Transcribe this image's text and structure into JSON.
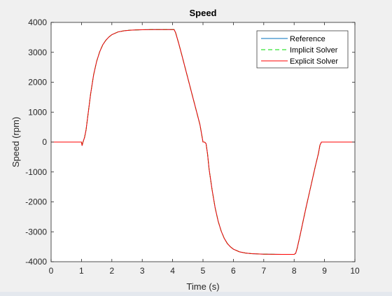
{
  "chart_data": {
    "type": "line",
    "title": "Speed",
    "xlabel": "Time (s)",
    "ylabel": "Speed (rpm)",
    "xlim": [
      0,
      10
    ],
    "ylim": [
      -4000,
      4000
    ],
    "xticks": [
      0,
      1,
      2,
      3,
      4,
      5,
      6,
      7,
      8,
      9,
      10
    ],
    "yticks": [
      -4000,
      -3000,
      -2000,
      -1000,
      0,
      1000,
      2000,
      3000,
      4000
    ],
    "grid": false,
    "legend_position": "top-right",
    "series": [
      {
        "name": "Reference",
        "color": "#0072bd",
        "style": "solid",
        "x": [
          0,
          1.0,
          1.02,
          1.05,
          1.1,
          1.15,
          1.2,
          1.3,
          1.4,
          1.5,
          1.6,
          1.7,
          1.8,
          1.9,
          2.0,
          2.2,
          2.4,
          2.6,
          2.8,
          3.0,
          3.3,
          3.6,
          3.9,
          4.05,
          4.1,
          4.2,
          4.3,
          4.4,
          4.5,
          4.6,
          4.7,
          4.8,
          4.9,
          5.0,
          5.05,
          5.1,
          5.15,
          5.2,
          5.3,
          5.4,
          5.5,
          5.6,
          5.7,
          5.8,
          5.9,
          6.0,
          6.2,
          6.4,
          6.6,
          6.8,
          7.0,
          7.3,
          7.6,
          7.9,
          8.0,
          8.05,
          8.1,
          8.2,
          8.3,
          8.4,
          8.5,
          8.6,
          8.7,
          8.8,
          8.85,
          8.9,
          9.0,
          10.0
        ],
        "y": [
          0,
          0,
          -120,
          0,
          150,
          400,
          800,
          1600,
          2250,
          2700,
          3020,
          3250,
          3400,
          3510,
          3590,
          3680,
          3720,
          3740,
          3750,
          3755,
          3760,
          3760,
          3760,
          3760,
          3650,
          3300,
          2920,
          2530,
          2140,
          1750,
          1360,
          970,
          580,
          0,
          0,
          -50,
          -400,
          -900,
          -1600,
          -2200,
          -2650,
          -2980,
          -3220,
          -3390,
          -3500,
          -3580,
          -3670,
          -3710,
          -3730,
          -3740,
          -3748,
          -3752,
          -3755,
          -3755,
          -3755,
          -3720,
          -3550,
          -3100,
          -2620,
          -2150,
          -1700,
          -1250,
          -800,
          -380,
          -100,
          0,
          0,
          0
        ]
      },
      {
        "name": "Implicit Solver",
        "color": "#00dd00",
        "style": "dashed",
        "x": [
          0,
          1.0,
          1.02,
          1.05,
          1.1,
          1.15,
          1.2,
          1.3,
          1.4,
          1.5,
          1.6,
          1.7,
          1.8,
          1.9,
          2.0,
          2.2,
          2.4,
          2.6,
          2.8,
          3.0,
          3.3,
          3.6,
          3.9,
          4.05,
          4.1,
          4.2,
          4.3,
          4.4,
          4.5,
          4.6,
          4.7,
          4.8,
          4.9,
          5.0,
          5.05,
          5.1,
          5.15,
          5.2,
          5.3,
          5.4,
          5.5,
          5.6,
          5.7,
          5.8,
          5.9,
          6.0,
          6.2,
          6.4,
          6.6,
          6.8,
          7.0,
          7.3,
          7.6,
          7.9,
          8.0,
          8.05,
          8.1,
          8.2,
          8.3,
          8.4,
          8.5,
          8.6,
          8.7,
          8.8,
          8.85,
          8.9,
          9.0,
          10.0
        ],
        "y": [
          0,
          0,
          -120,
          0,
          150,
          400,
          800,
          1600,
          2250,
          2700,
          3020,
          3250,
          3400,
          3510,
          3590,
          3680,
          3720,
          3740,
          3750,
          3755,
          3760,
          3760,
          3760,
          3760,
          3650,
          3300,
          2920,
          2530,
          2140,
          1750,
          1360,
          970,
          580,
          0,
          0,
          -50,
          -400,
          -900,
          -1600,
          -2200,
          -2650,
          -2980,
          -3220,
          -3390,
          -3500,
          -3580,
          -3670,
          -3710,
          -3730,
          -3740,
          -3748,
          -3752,
          -3755,
          -3755,
          -3755,
          -3720,
          -3550,
          -3100,
          -2620,
          -2150,
          -1700,
          -1250,
          -800,
          -380,
          -100,
          0,
          0,
          0
        ]
      },
      {
        "name": "Explicit Solver",
        "color": "#ff0000",
        "style": "solid",
        "x": [
          0,
          1.0,
          1.02,
          1.05,
          1.1,
          1.15,
          1.2,
          1.3,
          1.4,
          1.5,
          1.6,
          1.7,
          1.8,
          1.9,
          2.0,
          2.2,
          2.4,
          2.6,
          2.8,
          3.0,
          3.3,
          3.6,
          3.9,
          4.05,
          4.1,
          4.2,
          4.3,
          4.4,
          4.5,
          4.6,
          4.7,
          4.8,
          4.9,
          5.0,
          5.05,
          5.1,
          5.15,
          5.2,
          5.3,
          5.4,
          5.5,
          5.6,
          5.7,
          5.8,
          5.9,
          6.0,
          6.2,
          6.4,
          6.6,
          6.8,
          7.0,
          7.3,
          7.6,
          7.9,
          8.0,
          8.05,
          8.1,
          8.2,
          8.3,
          8.4,
          8.5,
          8.6,
          8.7,
          8.8,
          8.85,
          8.9,
          9.0,
          10.0
        ],
        "y": [
          0,
          0,
          -120,
          0,
          150,
          400,
          800,
          1600,
          2250,
          2700,
          3020,
          3250,
          3400,
          3510,
          3590,
          3680,
          3720,
          3740,
          3750,
          3755,
          3760,
          3760,
          3760,
          3760,
          3650,
          3300,
          2920,
          2530,
          2140,
          1750,
          1360,
          970,
          580,
          0,
          0,
          -50,
          -400,
          -900,
          -1600,
          -2200,
          -2650,
          -2980,
          -3220,
          -3390,
          -3500,
          -3580,
          -3670,
          -3710,
          -3730,
          -3740,
          -3748,
          -3752,
          -3755,
          -3755,
          -3755,
          -3720,
          -3550,
          -3100,
          -2620,
          -2150,
          -1700,
          -1250,
          -800,
          -380,
          -100,
          0,
          0,
          0
        ]
      }
    ]
  }
}
